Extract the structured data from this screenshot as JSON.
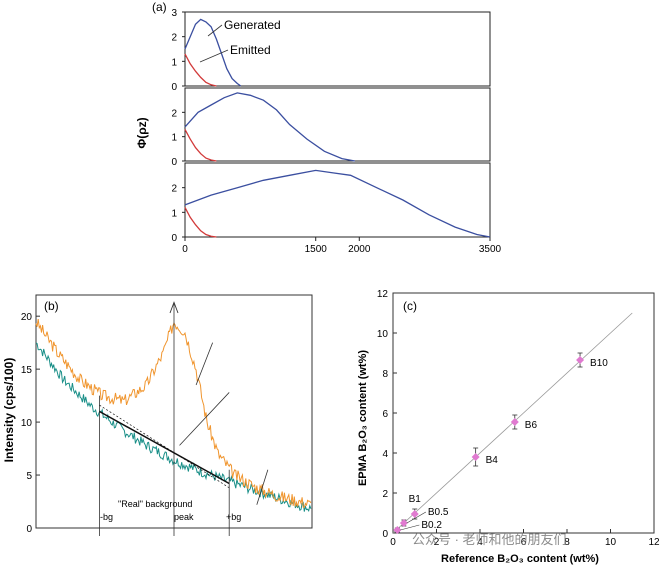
{
  "chart_data": [
    {
      "panel": "a",
      "type": "line",
      "panel_label": "(a)",
      "ylabel": "Φ(ρz)",
      "x_ticks": [
        "0",
        "500",
        "1000",
        "1500",
        "2000",
        "2500",
        "3000",
        "3500"
      ],
      "x_visible_tick_labels": [
        "0",
        "1500",
        "2000",
        "3500"
      ],
      "xlim": [
        0,
        3500
      ],
      "y_ticks": [
        "0",
        "1",
        "2",
        "3"
      ],
      "ylim": [
        0,
        3
      ],
      "legend": [
        "Generated",
        "Emitted"
      ],
      "colors": {
        "generated": "#3b4fa0",
        "emitted": "#d23a3a"
      },
      "subplots": [
        {
          "generated": {
            "x": [
              0,
              60,
              120,
              180,
              240,
              300,
              360,
              420,
              480,
              540,
              600,
              640
            ],
            "y": [
              1.5,
              2.0,
              2.5,
              2.7,
              2.6,
              2.4,
              1.9,
              1.3,
              0.7,
              0.3,
              0.1,
              0.0
            ]
          },
          "emitted": {
            "x": [
              0,
              60,
              120,
              180,
              240,
              300,
              360
            ],
            "y": [
              1.3,
              0.9,
              0.6,
              0.35,
              0.15,
              0.05,
              0.0
            ]
          }
        },
        {
          "generated": {
            "x": [
              0,
              150,
              300,
              450,
              600,
              750,
              900,
              1050,
              1200,
              1400,
              1600,
              1800,
              1950
            ],
            "y": [
              1.4,
              2.0,
              2.3,
              2.6,
              2.8,
              2.7,
              2.5,
              2.1,
              1.5,
              0.9,
              0.4,
              0.1,
              0.0
            ]
          },
          "emitted": {
            "x": [
              0,
              60,
              120,
              180,
              240,
              300,
              360
            ],
            "y": [
              1.3,
              0.9,
              0.55,
              0.3,
              0.12,
              0.04,
              0.0
            ]
          }
        },
        {
          "generated": {
            "x": [
              0,
              300,
              600,
              900,
              1200,
              1500,
              1700,
              1900,
              2200,
              2500,
              2800,
              3100,
              3350,
              3500
            ],
            "y": [
              1.3,
              1.7,
              2.0,
              2.3,
              2.5,
              2.7,
              2.6,
              2.5,
              2.0,
              1.5,
              0.9,
              0.4,
              0.1,
              0.0
            ]
          },
          "emitted": {
            "x": [
              0,
              60,
              120,
              180,
              240,
              300,
              360
            ],
            "y": [
              1.2,
              0.8,
              0.5,
              0.25,
              0.1,
              0.03,
              0.0
            ]
          }
        }
      ]
    },
    {
      "panel": "b",
      "type": "line",
      "panel_label": "(b)",
      "ylabel": "Intensity (cps/100)",
      "y_ticks": [
        "0",
        "5",
        "10",
        "15",
        "20"
      ],
      "ylim": [
        0,
        22
      ],
      "xlim": [
        0,
        100
      ],
      "annotations": [
        "-bg",
        "peak",
        "+bg",
        "\"Real\" background"
      ],
      "colors": {
        "spectrum": "#f0952e",
        "background": "#1a8f88"
      },
      "spectrum": {
        "x": [
          0,
          8,
          16,
          24,
          32,
          40,
          46,
          50,
          54,
          58,
          62,
          66,
          72,
          80,
          88,
          96,
          100
        ],
        "y": [
          19.5,
          16.5,
          14.0,
          12.5,
          12.0,
          13.5,
          16.5,
          19.5,
          18.5,
          15.0,
          10.0,
          7.0,
          5.0,
          3.8,
          3.0,
          2.5,
          2.2
        ]
      },
      "background": {
        "x": [
          0,
          10,
          20,
          30,
          40,
          50,
          60,
          70,
          80,
          90,
          100
        ],
        "y": [
          17.5,
          14.0,
          11.5,
          9.5,
          7.8,
          6.4,
          5.3,
          4.4,
          3.5,
          2.6,
          1.8
        ]
      }
    },
    {
      "panel": "c",
      "type": "scatter",
      "panel_label": "(c)",
      "xlabel": "Reference B₂O₃ content (wt%)",
      "ylabel": "EPMA B₂O₃ content (wt%)",
      "xlim": [
        0,
        12
      ],
      "ylim": [
        0,
        12
      ],
      "x_ticks": [
        "0",
        "2",
        "4",
        "6",
        "8",
        "10",
        "12"
      ],
      "y_ticks": [
        "0",
        "2",
        "4",
        "6",
        "8",
        "10",
        "12"
      ],
      "point_color": "#e07ad0",
      "points": [
        {
          "label": "B0.2",
          "x": 0.2,
          "y": 0.15,
          "err": 0.1
        },
        {
          "label": "B0.5",
          "x": 0.5,
          "y": 0.5,
          "err": 0.15
        },
        {
          "label": "B1",
          "x": 1.0,
          "y": 0.95,
          "err": 0.25
        },
        {
          "label": "B4",
          "x": 3.8,
          "y": 3.8,
          "err": 0.45
        },
        {
          "label": "B6",
          "x": 5.6,
          "y": 5.55,
          "err": 0.35
        },
        {
          "label": "B10",
          "x": 8.6,
          "y": 8.65,
          "err": 0.35
        }
      ],
      "line": {
        "x": [
          0,
          11
        ],
        "y": [
          0,
          11
        ]
      }
    }
  ],
  "watermark": "公众号 · 老师和他的朋友们"
}
